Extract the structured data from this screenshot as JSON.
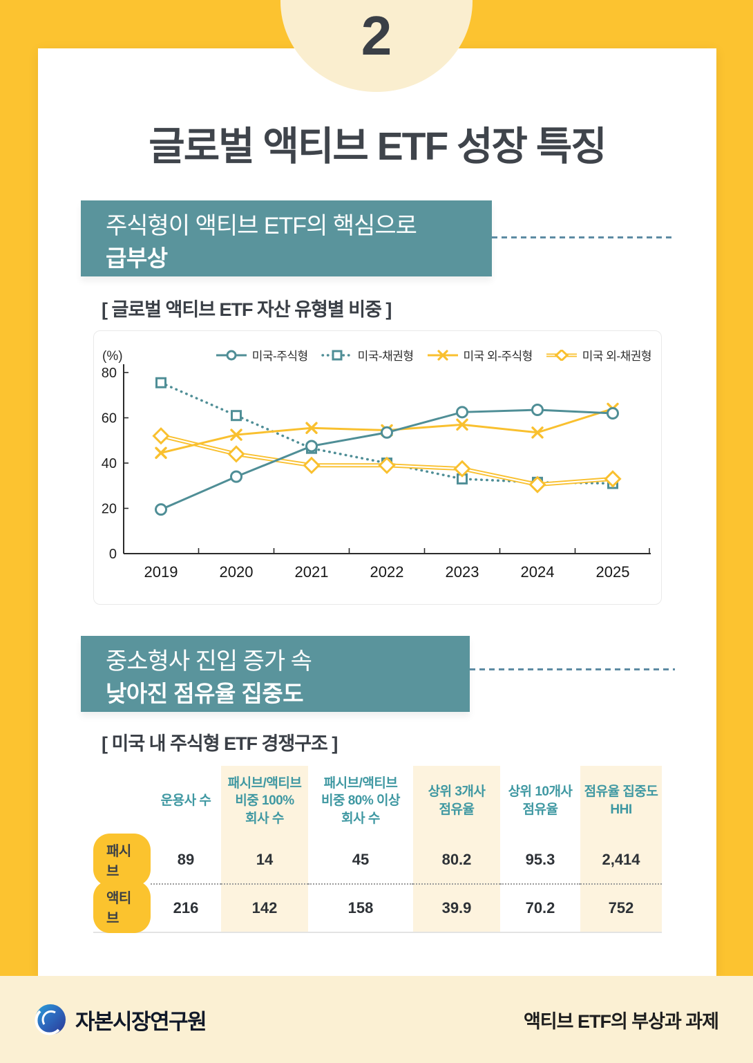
{
  "page": {
    "number": "2",
    "title": "글로벌 액티브 ETF 성장 특징"
  },
  "section1": {
    "heading_line1": "주식형이 액티브 ETF의 핵심으로",
    "heading_line2": "급부상",
    "caption": "[ 글로벌 액티브 ETF 자산 유형별 비중 ]"
  },
  "chart_data": {
    "type": "line",
    "unit_label": "(%)",
    "categories": [
      "2019",
      "2020",
      "2021",
      "2022",
      "2023",
      "2024",
      "2025"
    ],
    "series": [
      {
        "name": "미국-주식형",
        "color": "#4f8e96",
        "style": "solid",
        "marker": "circle",
        "values": [
          19.5,
          34,
          47.5,
          53.5,
          62.5,
          63.5,
          62
        ]
      },
      {
        "name": "미국-채권형",
        "color": "#4f8e96",
        "style": "dotted",
        "marker": "square",
        "values": [
          75.5,
          61,
          46.5,
          40,
          33,
          31.5,
          31
        ]
      },
      {
        "name": "미국 외-주식형",
        "color": "#f9c02f",
        "style": "solid",
        "marker": "xmark",
        "values": [
          44.5,
          52.5,
          55.5,
          54.5,
          57,
          53.5,
          64
        ]
      },
      {
        "name": "미국 외-채권형",
        "color": "#f9c02f",
        "style": "double",
        "marker": "diamond",
        "values": [
          52,
          44,
          39,
          39,
          37.5,
          30.5,
          33
        ]
      }
    ],
    "ylim": [
      0,
      80
    ],
    "yticks": [
      0,
      20,
      40,
      60,
      80
    ],
    "grid": false,
    "legend_position": "top"
  },
  "section2": {
    "heading_line1": "중소형사 진입 증가 속",
    "heading_line2": "낮아진 점유율 집중도",
    "caption": "[ 미국 내 주식형 ETF 경쟁구조 ]"
  },
  "table": {
    "headers": [
      "",
      "운용사 수",
      "패시브/액티브\n비중  100%\n회사 수",
      "패시브/액티브\n비중  80% 이상\n회사 수",
      "상위 3개사\n점유율",
      "상위 10개사\n점유율",
      "점유율 집중도\nHHI"
    ],
    "rows": [
      {
        "label": "패시브",
        "values": [
          "89",
          "14",
          "45",
          "80.2",
          "95.3",
          "2,414"
        ]
      },
      {
        "label": "액티브",
        "values": [
          "216",
          "142",
          "158",
          "39.9",
          "70.2",
          "752"
        ]
      }
    ]
  },
  "footer": {
    "org": "자본시장연구원",
    "doc_title": "액티브 ETF의  부상과 과제"
  },
  "colors": {
    "background_yellow": "#fcc330",
    "badge_cream": "#faeecf",
    "teal_box": "#5a949c",
    "teal_line": "#4f8e96",
    "yellow_line": "#f9c02f",
    "table_cream": "#fdf3de",
    "pill_yellow": "#fbc32e",
    "footer_cream": "#fbf0d3",
    "dark_text": "#3a3f46",
    "table_header_teal": "#3f98a2",
    "connector_blue": "#5d8ba3"
  }
}
